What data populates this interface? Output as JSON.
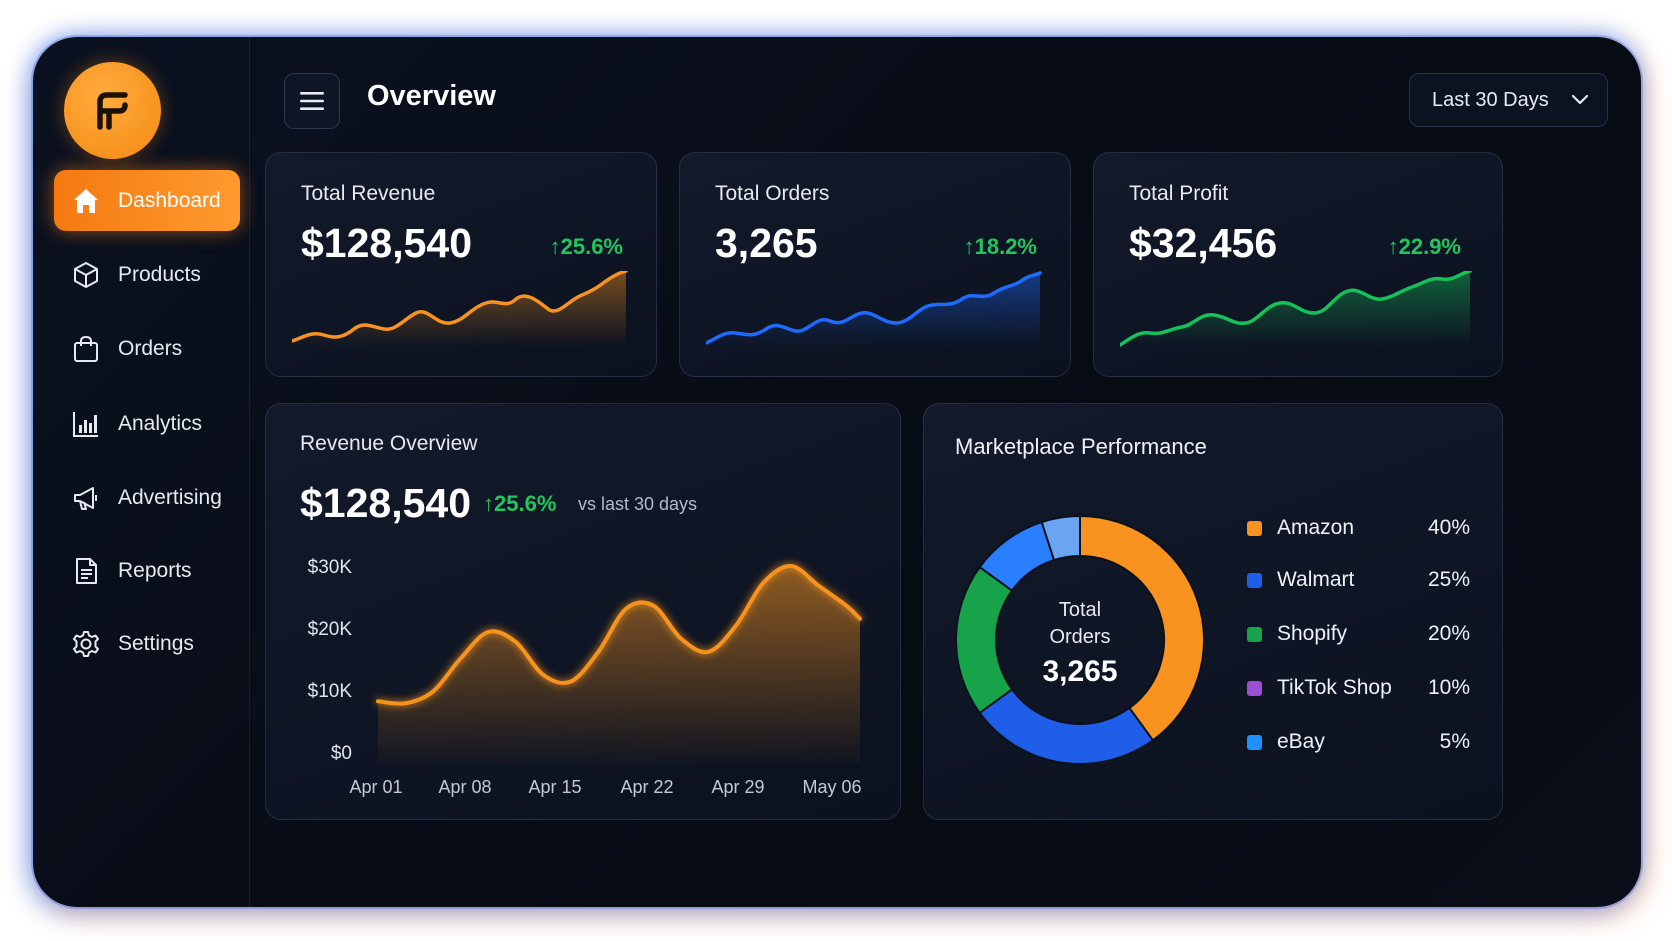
{
  "header": {
    "title": "Overview",
    "range_label": "Last 30 Days"
  },
  "sidebar": {
    "items": [
      {
        "label": "Dashboard",
        "icon": "home-icon",
        "active": true
      },
      {
        "label": "Products",
        "icon": "box-icon"
      },
      {
        "label": "Orders",
        "icon": "shopping-bag-icon"
      },
      {
        "label": "Analytics",
        "icon": "bar-chart-icon"
      },
      {
        "label": "Advertising",
        "icon": "megaphone-icon"
      },
      {
        "label": "Reports",
        "icon": "document-icon"
      },
      {
        "label": "Settings",
        "icon": "gear-icon"
      }
    ]
  },
  "kpis": [
    {
      "title": "Total Revenue",
      "value": "$128,540",
      "delta": "25.6%",
      "color": "#f7931e"
    },
    {
      "title": "Total Orders",
      "value": "3,265",
      "delta": "18.2%",
      "color": "#1f6bff"
    },
    {
      "title": "Total Profit",
      "value": "$32,456",
      "delta": "22.9%",
      "color": "#16c15a"
    }
  ],
  "revenue_overview": {
    "title": "Revenue Overview",
    "value": "$128,540",
    "delta": "25.6%",
    "compare": "vs last 30 days"
  },
  "marketplace": {
    "title": "Marketplace Performance",
    "center_label_line1": "Total",
    "center_label_line2": "Orders",
    "center_value": "3,265",
    "items": [
      {
        "name": "Amazon",
        "pct": "40%",
        "color": "#f7931e"
      },
      {
        "name": "Walmart",
        "pct": "25%",
        "color": "#1f5ee8"
      },
      {
        "name": "Shopify",
        "pct": "20%",
        "color": "#16a34a"
      },
      {
        "name": "TikTok Shop",
        "pct": "10%",
        "color": "#9b4fd6"
      },
      {
        "name": "eBay",
        "pct": "5%",
        "color": "#1e90ff"
      }
    ]
  },
  "chart_data": [
    {
      "type": "area",
      "title": "Revenue Overview",
      "xlabel": "",
      "ylabel": "",
      "x_ticks": [
        "Apr 01",
        "Apr 08",
        "Apr 15",
        "Apr 22",
        "Apr 29",
        "May 06"
      ],
      "y_ticks": [
        "$30K",
        "$20K",
        "$10K",
        "$0"
      ],
      "ylim": [
        0,
        30000
      ],
      "x": [
        0,
        2,
        4,
        6,
        8,
        10,
        12,
        14,
        16,
        18,
        20,
        22,
        24,
        26,
        28,
        30,
        32,
        34,
        35
      ],
      "values": [
        9500,
        9200,
        11000,
        16000,
        20000,
        18500,
        13500,
        12500,
        17000,
        23500,
        24000,
        19000,
        17000,
        21000,
        27500,
        30000,
        27000,
        24000,
        22000
      ],
      "color": "#f7931e"
    },
    {
      "type": "pie",
      "title": "Marketplace Performance",
      "categories": [
        "Amazon",
        "Walmart",
        "Shopify",
        "TikTok Shop",
        "eBay"
      ],
      "values": [
        40,
        25,
        20,
        10,
        5
      ],
      "display_colors": [
        "#f7931e",
        "#1f5ee8",
        "#16a34a",
        "#2a7fff",
        "#6aa5f2"
      ],
      "legend": "right"
    }
  ]
}
